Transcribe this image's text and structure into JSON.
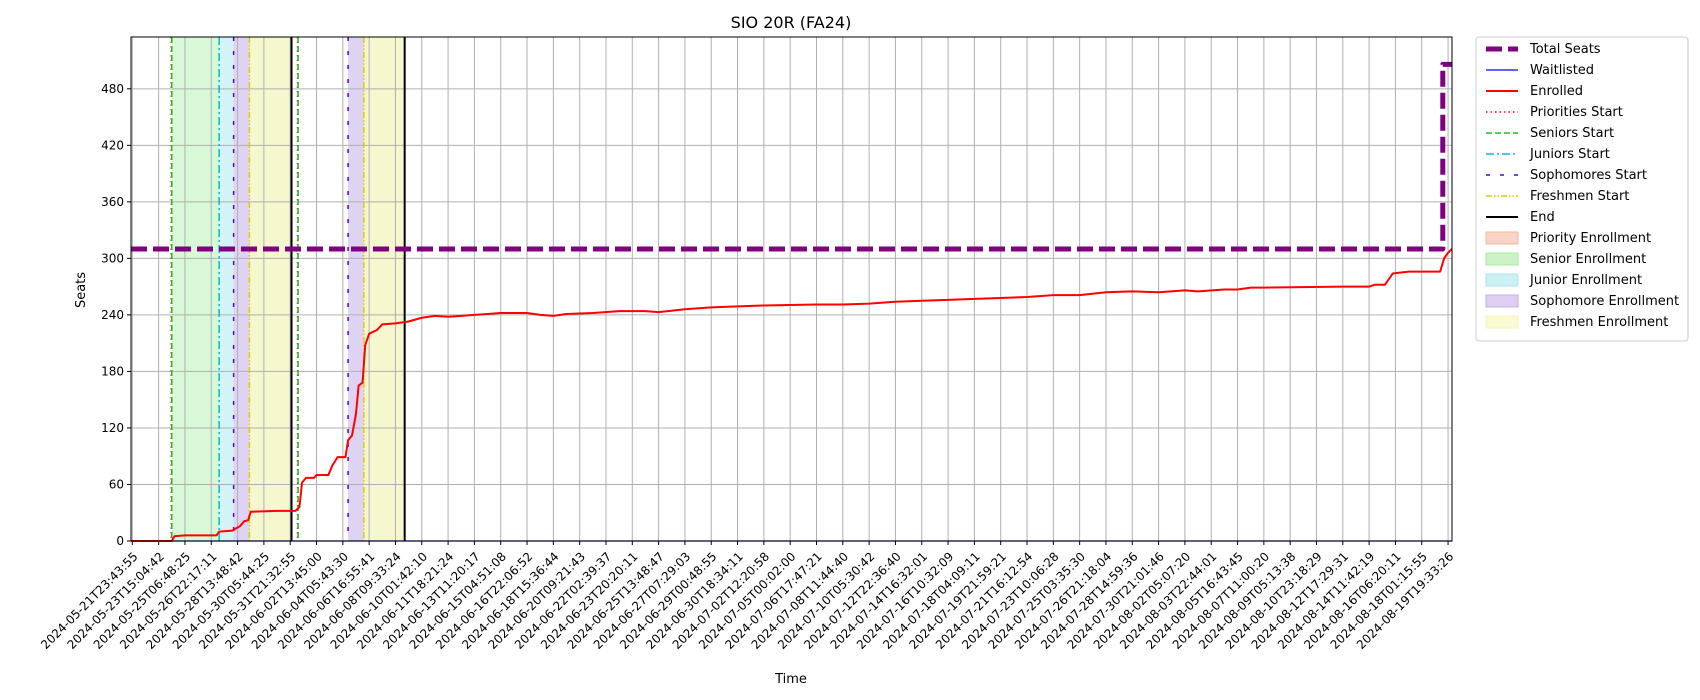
{
  "chart_data": {
    "type": "line",
    "title": "SIO 20R (FA24)",
    "xlabel": "Time",
    "ylabel": "Seats",
    "ylim": [
      0,
      535
    ],
    "yticks": [
      0,
      60,
      120,
      180,
      240,
      300,
      360,
      420,
      480
    ],
    "grid": true,
    "legend_position": "outside-right-top",
    "x_tick_labels": [
      "2024-05-21T23:43:55",
      "2024-05-23T15:04:42",
      "2024-05-25T06:48:25",
      "2024-05-26T22:17:11",
      "2024-05-28T13:48:42",
      "2024-05-30T05:44:25",
      "2024-05-31T21:32:55",
      "2024-06-02T13:45:00",
      "2024-06-04T05:43:30",
      "2024-06-06T16:55:41",
      "2024-06-08T09:33:24",
      "2024-06-10T01:42:10",
      "2024-06-11T18:21:24",
      "2024-06-13T11:20:17",
      "2024-06-15T04:51:08",
      "2024-06-16T22:06:52",
      "2024-06-18T15:36:44",
      "2024-06-20T09:21:43",
      "2024-06-22T02:39:37",
      "2024-06-23T20:20:11",
      "2024-06-25T13:48:47",
      "2024-06-27T07:29:03",
      "2024-06-29T00:48:55",
      "2024-06-30T18:34:11",
      "2024-07-02T12:20:58",
      "2024-07-05T00:02:00",
      "2024-07-06T17:47:21",
      "2024-07-08T11:44:40",
      "2024-07-10T05:30:42",
      "2024-07-12T22:36:40",
      "2024-07-14T16:32:01",
      "2024-07-16T10:32:09",
      "2024-07-18T04:09:11",
      "2024-07-19T21:59:21",
      "2024-07-21T16:12:54",
      "2024-07-23T10:06:28",
      "2024-07-25T03:35:30",
      "2024-07-26T21:18:04",
      "2024-07-28T14:59:36",
      "2024-07-30T21:01:46",
      "2024-08-02T05:07:20",
      "2024-08-03T22:44:01",
      "2024-08-05T16:43:45",
      "2024-08-07T11:00:20",
      "2024-08-09T05:13:38",
      "2024-08-10T23:18:29",
      "2024-08-12T17:29:31",
      "2024-08-14T11:42:19",
      "2024-08-16T06:20:11",
      "2024-08-18T01:15:55",
      "2024-08-19T19:33:26"
    ],
    "x_range_ticks": [
      -0.05,
      50.15
    ],
    "series": [
      {
        "name": "Total Seats",
        "color": "#800080",
        "style": "dashed-thick",
        "points": [
          [
            -0.05,
            310
          ],
          [
            49.8,
            310
          ],
          [
            49.8,
            506
          ],
          [
            50.15,
            506
          ]
        ]
      },
      {
        "name": "Waitlisted",
        "color": "#0000ff",
        "style": "solid-thin",
        "points": [
          [
            -0.05,
            0
          ],
          [
            50.15,
            0
          ]
        ]
      },
      {
        "name": "Enrolled",
        "color": "#ff0000",
        "style": "solid",
        "points": [
          [
            -0.05,
            0
          ],
          [
            1.5,
            0
          ],
          [
            1.6,
            5
          ],
          [
            2.0,
            6
          ],
          [
            3.2,
            6
          ],
          [
            3.3,
            10
          ],
          [
            3.8,
            11
          ],
          [
            4.1,
            16
          ],
          [
            4.25,
            21
          ],
          [
            4.4,
            22
          ],
          [
            4.5,
            31
          ],
          [
            5.5,
            32
          ],
          [
            6.2,
            32
          ],
          [
            6.35,
            36
          ],
          [
            6.45,
            62
          ],
          [
            6.6,
            67
          ],
          [
            6.9,
            67
          ],
          [
            7.0,
            70
          ],
          [
            7.45,
            70
          ],
          [
            7.6,
            80
          ],
          [
            7.8,
            89
          ],
          [
            8.1,
            89
          ],
          [
            8.2,
            107
          ],
          [
            8.35,
            112
          ],
          [
            8.5,
            135
          ],
          [
            8.6,
            165
          ],
          [
            8.75,
            168
          ],
          [
            8.85,
            208
          ],
          [
            9.0,
            220
          ],
          [
            9.3,
            224
          ],
          [
            9.5,
            230
          ],
          [
            10.0,
            231
          ],
          [
            10.5,
            233
          ],
          [
            11.0,
            237
          ],
          [
            11.5,
            239
          ],
          [
            12.0,
            238
          ],
          [
            12.5,
            239
          ],
          [
            13.0,
            240
          ],
          [
            13.5,
            241
          ],
          [
            14.0,
            242
          ],
          [
            15.0,
            242
          ],
          [
            15.5,
            240
          ],
          [
            16.0,
            239
          ],
          [
            16.5,
            241
          ],
          [
            17.5,
            242
          ],
          [
            18.5,
            244
          ],
          [
            19.5,
            244
          ],
          [
            20.0,
            243
          ],
          [
            21.0,
            246
          ],
          [
            22.0,
            248
          ],
          [
            23.0,
            249
          ],
          [
            24.0,
            250
          ],
          [
            26.0,
            251
          ],
          [
            27.0,
            251
          ],
          [
            28.0,
            252
          ],
          [
            29.0,
            254
          ],
          [
            30.0,
            255
          ],
          [
            31.0,
            256
          ],
          [
            32.0,
            257
          ],
          [
            33.0,
            258
          ],
          [
            34.0,
            259
          ],
          [
            35.0,
            261
          ],
          [
            36.0,
            261
          ],
          [
            37.0,
            264
          ],
          [
            38.0,
            265
          ],
          [
            39.0,
            264
          ],
          [
            40.0,
            266
          ],
          [
            40.5,
            265
          ],
          [
            41.5,
            267
          ],
          [
            42.0,
            267
          ],
          [
            42.5,
            269
          ],
          [
            43.0,
            269
          ],
          [
            46.0,
            270
          ],
          [
            47.0,
            270
          ],
          [
            47.2,
            272
          ],
          [
            47.6,
            272
          ],
          [
            47.9,
            284
          ],
          [
            48.5,
            286
          ],
          [
            49.0,
            286
          ],
          [
            49.7,
            286
          ],
          [
            49.85,
            300
          ],
          [
            50.0,
            306
          ],
          [
            50.15,
            310
          ]
        ]
      }
    ],
    "vlines": [
      {
        "name": "Priorities Start",
        "x": 1.48,
        "color": "#ff0000",
        "style": "dotted"
      },
      {
        "name": "Seniors Start",
        "x": 1.5,
        "color": "#22bb22",
        "style": "dashed"
      },
      {
        "name": "Juniors Start",
        "x": 3.3,
        "color": "#00bcd4",
        "style": "dashdot"
      },
      {
        "name": "Sophomores Start",
        "x": 3.85,
        "color": "#5500cc",
        "style": "loosedash"
      },
      {
        "name": "Freshmen Start",
        "x": 4.45,
        "color": "#ddcc00",
        "style": "dashdotdot"
      },
      {
        "name": "End",
        "x": 6.05,
        "color": "#000000",
        "style": "solid"
      },
      {
        "name": "Priorities Start",
        "x": 6.28,
        "color": "#ff0000",
        "style": "dotted"
      },
      {
        "name": "Seniors Start",
        "x": 6.3,
        "color": "#22bb22",
        "style": "dashed"
      },
      {
        "name": "Sophomores Start",
        "x": 8.2,
        "color": "#5500cc",
        "style": "loosedash"
      },
      {
        "name": "Freshmen Start",
        "x": 8.8,
        "color": "#ddcc00",
        "style": "dashdotdot"
      },
      {
        "name": "End",
        "x": 10.35,
        "color": "#000000",
        "style": "solid"
      }
    ],
    "spans": [
      {
        "name": "Senior Enrollment",
        "x0": 1.5,
        "x1": 3.3,
        "color": "#90ee90",
        "opacity": 0.35
      },
      {
        "name": "Junior Enrollment",
        "x0": 3.3,
        "x1": 3.85,
        "color": "#7fdfef",
        "opacity": 0.35
      },
      {
        "name": "Sophomore Enrollment",
        "x0": 3.85,
        "x1": 4.45,
        "color": "#b090e0",
        "opacity": 0.4
      },
      {
        "name": "Freshmen Enrollment",
        "x0": 4.45,
        "x1": 6.05,
        "color": "#f0f0a0",
        "opacity": 0.5
      },
      {
        "name": "Sophomore Enrollment",
        "x0": 8.2,
        "x1": 8.8,
        "color": "#b090e0",
        "opacity": 0.4
      },
      {
        "name": "Freshmen Enrollment",
        "x0": 8.8,
        "x1": 10.35,
        "color": "#f0f0a0",
        "opacity": 0.5
      }
    ],
    "legend": [
      {
        "label": "Total Seats",
        "kind": "line",
        "color": "#800080",
        "style": "dashed-thick"
      },
      {
        "label": "Waitlisted",
        "kind": "line",
        "color": "#0000ff",
        "style": "solid-thin"
      },
      {
        "label": "Enrolled",
        "kind": "line",
        "color": "#ff0000",
        "style": "solid"
      },
      {
        "label": "Priorities Start",
        "kind": "line",
        "color": "#ff0000",
        "style": "dotted"
      },
      {
        "label": "Seniors Start",
        "kind": "line",
        "color": "#22bb22",
        "style": "dashed"
      },
      {
        "label": "Juniors Start",
        "kind": "line",
        "color": "#00bcd4",
        "style": "dashdot"
      },
      {
        "label": "Sophomores Start",
        "kind": "line",
        "color": "#5500cc",
        "style": "loosedash"
      },
      {
        "label": "Freshmen Start",
        "kind": "line",
        "color": "#ddcc00",
        "style": "dashdotdot"
      },
      {
        "label": "End",
        "kind": "line",
        "color": "#000000",
        "style": "solid"
      },
      {
        "label": "Priority Enrollment",
        "kind": "patch",
        "color": "#f4b8a0"
      },
      {
        "label": "Senior Enrollment",
        "kind": "patch",
        "color": "#a8eaa0"
      },
      {
        "label": "Junior Enrollment",
        "kind": "patch",
        "color": "#a8e8ef"
      },
      {
        "label": "Sophomore Enrollment",
        "kind": "patch",
        "color": "#c8aee8"
      },
      {
        "label": "Freshmen Enrollment",
        "kind": "patch",
        "color": "#f5f5b8"
      }
    ]
  }
}
